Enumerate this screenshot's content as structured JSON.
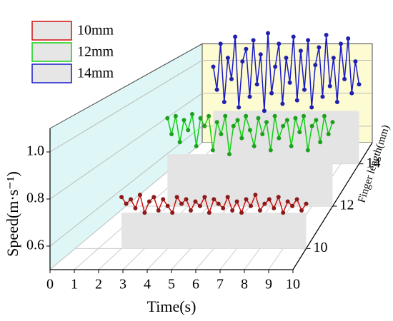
{
  "chart_data": {
    "type": "line3d",
    "xlabel": "Time(s)",
    "ylabel": "Speed(m·s⁻¹)",
    "zlabel": "Finger length(mm)",
    "x": [
      2,
      2.2,
      2.4,
      2.6,
      2.8,
      3,
      3.2,
      3.4,
      3.6,
      3.8,
      4,
      4.2,
      4.4,
      4.6,
      4.8,
      5,
      5.2,
      5.4,
      5.6,
      5.8,
      6,
      6.2,
      6.4,
      6.6,
      6.8,
      7,
      7.2,
      7.4,
      7.6,
      7.8,
      8,
      8.2,
      8.4,
      8.6,
      8.8,
      9,
      9.2,
      9.4,
      9.6,
      9.8,
      10
    ],
    "series": [
      {
        "name": "10mm",
        "z": 10,
        "color": "#d01010",
        "marker": "#8b1a1a",
        "values": [
          0.73,
          0.7,
          0.72,
          0.68,
          0.74,
          0.66,
          0.71,
          0.73,
          0.67,
          0.72,
          0.69,
          0.66,
          0.73,
          0.7,
          0.72,
          0.67,
          0.71,
          0.69,
          0.73,
          0.66,
          0.72,
          0.7,
          0.68,
          0.73,
          0.67,
          0.71,
          0.66,
          0.72,
          0.69,
          0.74,
          0.67,
          0.7,
          0.72,
          0.68,
          0.73,
          0.66,
          0.71,
          0.69,
          0.72,
          0.67,
          0.7
        ]
      },
      {
        "name": "12mm",
        "z": 12,
        "color": "#10d010",
        "marker": "#1ea01e",
        "values": [
          0.94,
          0.86,
          0.95,
          0.82,
          0.93,
          0.88,
          0.96,
          0.8,
          0.94,
          0.9,
          0.95,
          0.78,
          0.92,
          0.86,
          0.95,
          0.76,
          0.9,
          0.93,
          0.84,
          0.95,
          0.88,
          0.8,
          0.94,
          0.86,
          0.92,
          0.78,
          0.95,
          0.84,
          0.9,
          0.93,
          0.8,
          0.94,
          0.87,
          0.95,
          0.78,
          0.9,
          0.93,
          0.82,
          0.95,
          0.86,
          0.92
        ]
      },
      {
        "name": "14mm",
        "z": 14,
        "color": "#1818c8",
        "marker": "#2020b0",
        "values": [
          1.05,
          0.92,
          1.18,
          0.85,
          1.1,
          0.98,
          1.22,
          0.82,
          1.08,
          1.15,
          0.88,
          1.2,
          0.95,
          1.12,
          0.8,
          1.24,
          0.9,
          1.05,
          1.18,
          0.84,
          1.1,
          0.96,
          1.22,
          0.86,
          1.14,
          0.92,
          1.2,
          0.82,
          1.06,
          1.16,
          0.88,
          1.23,
          0.94,
          1.1,
          0.85,
          1.18,
          0.98,
          1.21,
          0.9,
          1.08,
          0.95
        ]
      }
    ],
    "xlim": [
      0,
      10
    ],
    "xticks": [
      0,
      1,
      2,
      3,
      4,
      5,
      6,
      7,
      8,
      9,
      10
    ],
    "ylim": [
      0.5,
      1.1
    ],
    "yticks": [
      0.6,
      0.8,
      {
        "value": 1,
        "label": "1.0"
      }
    ],
    "zlim": [
      9,
      15
    ],
    "zticks": [
      10,
      12,
      14
    ],
    "legend": "upper left"
  }
}
